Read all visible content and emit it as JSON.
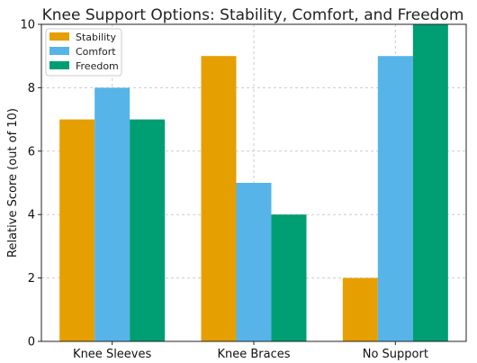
{
  "chart_data": {
    "type": "bar",
    "title": "Knee Support Options: Stability, Comfort, and Freedom",
    "xlabel": "",
    "ylabel": "Relative Score (out of 10)",
    "categories": [
      "Knee Sleeves",
      "Knee Braces",
      "No Support"
    ],
    "series": [
      {
        "name": "Stability",
        "values": [
          7,
          9,
          2
        ],
        "color": "#E69F00"
      },
      {
        "name": "Comfort",
        "values": [
          8,
          5,
          9
        ],
        "color": "#56B4E9"
      },
      {
        "name": "Freedom",
        "values": [
          7,
          4,
          10
        ],
        "color": "#009E73"
      }
    ],
    "ylim": [
      0,
      10
    ],
    "yticks": [
      "0",
      "2",
      "4",
      "6",
      "8",
      "10"
    ],
    "grid": true,
    "legend_position": "top-left"
  }
}
